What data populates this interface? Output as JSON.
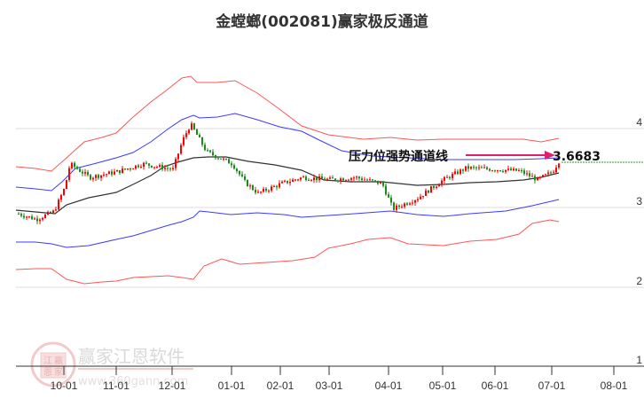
{
  "title": "金螳螂(002081)赢家极反通道",
  "watermark": {
    "brand": "赢家江恩软件",
    "url": "www.360gann.com",
    "seal_chars": [
      "江",
      "赢",
      "恩",
      "家"
    ]
  },
  "annotation": {
    "label": "压力位强势通道线",
    "value": "3.6683",
    "arrow_color": "#e0206e",
    "line_color": "#2e9a2e"
  },
  "colors": {
    "up": "#ff0000",
    "down": "#1a8a1a",
    "outer_band": "#ff5555",
    "inner_band": "#3b3bff",
    "mid_line": "#333333",
    "grid": "#dddddd",
    "axis": "#333333"
  },
  "chart_data": {
    "type": "candlestick-channel",
    "title": "金螳螂(002081)赢家极反通道",
    "xlabel": "",
    "ylabel": "",
    "ylim": [
      1,
      4.7
    ],
    "grid": true,
    "y_ticks": [
      1,
      2,
      3,
      4
    ],
    "x_ticks": [
      "10-01",
      "11-01",
      "12-01",
      "01-01",
      "02-01",
      "03-01",
      "04-01",
      "05-01",
      "06-01",
      "07-01",
      "08-01"
    ],
    "annotation": {
      "text": "压力位强势通道线",
      "value": 3.6683
    },
    "series": [
      {
        "name": "outer_upper",
        "color": "#ff5555",
        "x": [
          "09-05",
          "09-20",
          "09-25",
          "10-05",
          "10-15",
          "11-01",
          "11-15",
          "12-01",
          "12-10",
          "12-20",
          "01-01",
          "01-15",
          "02-01",
          "02-20",
          "03-01",
          "03-15",
          "04-01",
          "04-15",
          "05-01",
          "05-15",
          "06-01",
          "06-20",
          "07-01",
          "07-10"
        ],
        "values": [
          3.45,
          3.42,
          3.42,
          3.65,
          3.8,
          3.9,
          4.05,
          4.35,
          4.58,
          4.62,
          4.62,
          4.5,
          4.2,
          3.9,
          3.8,
          3.78,
          3.76,
          3.75,
          3.75,
          3.76,
          3.76,
          3.72,
          3.76,
          3.8
        ]
      },
      {
        "name": "inner_upper",
        "color": "#3b3bff",
        "x": [
          "09-05",
          "09-25",
          "10-05",
          "10-15",
          "11-01",
          "11-15",
          "12-01",
          "12-10",
          "12-20",
          "01-01",
          "01-15",
          "02-01",
          "02-20",
          "03-01",
          "03-15",
          "04-01",
          "04-15",
          "05-01",
          "05-15",
          "06-01",
          "06-20",
          "07-01",
          "07-10"
        ],
        "values": [
          3.25,
          3.22,
          3.35,
          3.5,
          3.56,
          3.68,
          3.95,
          4.18,
          4.15,
          4.18,
          4.12,
          4.05,
          3.85,
          3.7,
          3.65,
          3.62,
          3.62,
          3.62,
          3.63,
          3.63,
          3.64,
          3.66,
          3.67
        ]
      },
      {
        "name": "middle",
        "color": "#333333",
        "x": [
          "09-05",
          "09-25",
          "10-05",
          "10-15",
          "11-01",
          "11-15",
          "12-01",
          "12-10",
          "12-20",
          "01-01",
          "01-15",
          "02-01",
          "02-20",
          "03-01",
          "03-15",
          "04-01",
          "04-15",
          "05-01",
          "05-15",
          "06-01",
          "06-20",
          "07-01",
          "07-10"
        ],
        "values": [
          2.98,
          2.96,
          3.05,
          3.12,
          3.2,
          3.32,
          3.45,
          3.52,
          3.58,
          3.58,
          3.55,
          3.52,
          3.45,
          3.4,
          3.4,
          3.38,
          3.36,
          3.35,
          3.36,
          3.37,
          3.38,
          3.4,
          3.44
        ]
      },
      {
        "name": "inner_lower",
        "color": "#3b3bff",
        "x": [
          "09-05",
          "09-25",
          "10-05",
          "10-15",
          "11-01",
          "11-15",
          "12-01",
          "12-10",
          "12-20",
          "01-01",
          "01-15",
          "02-01",
          "02-20",
          "03-01",
          "03-15",
          "04-01",
          "04-15",
          "05-01",
          "05-15",
          "06-01",
          "06-20",
          "07-01",
          "07-10"
        ],
        "values": [
          2.62,
          2.6,
          2.55,
          2.58,
          2.62,
          2.7,
          2.8,
          2.88,
          2.95,
          2.92,
          2.91,
          2.9,
          2.92,
          2.9,
          2.92,
          2.95,
          2.9,
          2.88,
          2.9,
          2.92,
          2.95,
          3.02,
          3.05
        ]
      },
      {
        "name": "outer_lower",
        "color": "#ff5555",
        "x": [
          "09-05",
          "09-25",
          "10-05",
          "10-15",
          "11-01",
          "11-15",
          "12-01",
          "12-10",
          "12-20",
          "01-01",
          "01-15",
          "02-01",
          "02-20",
          "03-01",
          "03-15",
          "04-01",
          "04-15",
          "05-01",
          "05-15",
          "06-01",
          "06-20",
          "07-01",
          "07-10"
        ],
        "values": [
          2.2,
          2.22,
          2.02,
          2.02,
          2.05,
          2.1,
          2.12,
          2.35,
          2.3,
          2.28,
          2.3,
          2.42,
          2.55,
          2.58,
          2.62,
          2.62,
          2.55,
          2.58,
          2.62,
          2.66,
          2.72,
          2.78,
          2.82
        ]
      },
      {
        "name": "close",
        "color": "#000000",
        "x": [
          "09-05",
          "09-20",
          "09-28",
          "10-01",
          "10-05",
          "10-15",
          "11-01",
          "11-15",
          "12-01",
          "12-08",
          "12-12",
          "12-20",
          "01-01",
          "01-10",
          "01-20",
          "02-01",
          "02-15",
          "03-01",
          "03-15",
          "03-28",
          "04-03",
          "04-15",
          "05-01",
          "05-15",
          "06-01",
          "06-15",
          "06-25",
          "07-05",
          "07-10"
        ],
        "values": [
          2.92,
          2.85,
          2.95,
          3.25,
          3.55,
          3.38,
          3.45,
          3.55,
          3.48,
          3.85,
          4.05,
          3.7,
          3.55,
          3.32,
          3.18,
          3.3,
          3.38,
          3.35,
          3.38,
          3.3,
          2.98,
          3.12,
          3.35,
          3.5,
          3.48,
          3.46,
          3.35,
          3.45,
          3.6
        ]
      }
    ]
  }
}
